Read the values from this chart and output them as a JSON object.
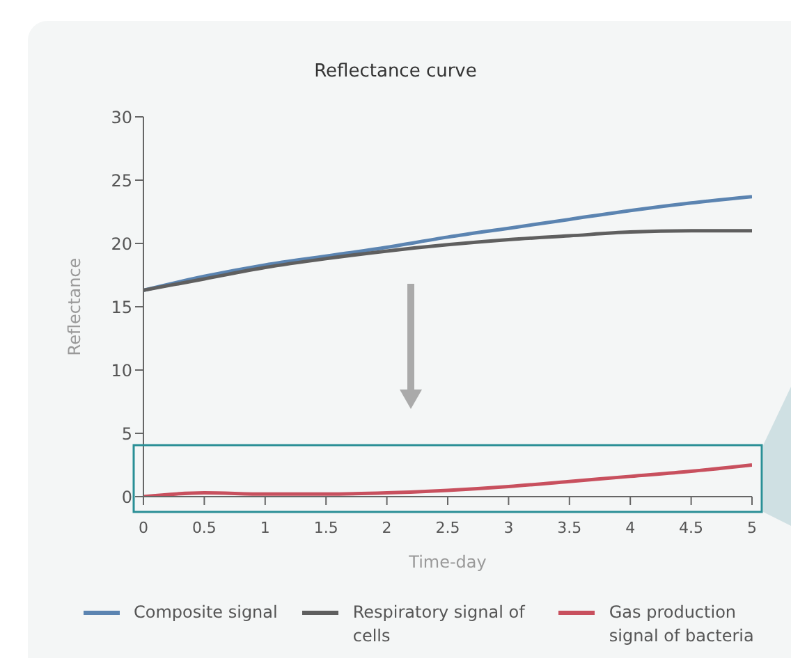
{
  "chart_data": {
    "type": "line",
    "title": "Reflectance curve",
    "xlabel": "Time-day",
    "ylabel": "Reflectance",
    "x": [
      0,
      0.5,
      1,
      1.5,
      2,
      2.5,
      3,
      3.5,
      4,
      4.5,
      5
    ],
    "series": [
      {
        "name": "Composite signal",
        "color": "#5b84b1",
        "values": [
          16.3,
          17.4,
          18.3,
          19.0,
          19.7,
          20.5,
          21.2,
          21.9,
          22.6,
          23.2,
          23.7
        ]
      },
      {
        "name": "Respiratory signal of cells",
        "color": "#5f5f5f",
        "values": [
          16.3,
          17.2,
          18.1,
          18.8,
          19.4,
          19.9,
          20.3,
          20.6,
          20.9,
          21.0,
          21.0
        ]
      },
      {
        "name": "Gas production signal of bacteria",
        "color": "#c8505e",
        "values": [
          0,
          0.3,
          0.2,
          0.2,
          0.3,
          0.5,
          0.8,
          1.2,
          1.6,
          2.0,
          2.5
        ]
      }
    ],
    "xlim": [
      0,
      5
    ],
    "xticks": [
      0,
      0.5,
      1,
      1.5,
      2,
      2.5,
      3,
      3.5,
      4,
      4.5,
      5
    ],
    "ylim": [
      0,
      30
    ],
    "yticks": [
      0,
      5,
      10,
      15,
      20,
      25,
      30
    ],
    "grid": false,
    "legend": "bottom",
    "marker": "none",
    "line_style": "solid"
  }
}
